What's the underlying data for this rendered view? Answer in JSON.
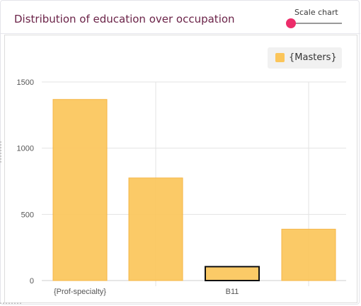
{
  "header": {
    "title": "Distribution of education over occupation",
    "scale_label": "Scale chart"
  },
  "colors": {
    "bar": "#fbc55a",
    "bar_stroke": "#f5b545",
    "highlight_stroke": "#111111",
    "accent": "#ec2d6a",
    "title": "#6b2348"
  },
  "slider": {
    "value": 0
  },
  "chart_data": {
    "type": "bar",
    "categories": [
      "{Prof-specialty}",
      "",
      "B11",
      ""
    ],
    "series": [
      {
        "name": "{Masters}",
        "values": [
          1368,
          775,
          105,
          388
        ]
      }
    ],
    "highlighted_index": 2,
    "yticks": [
      0,
      500,
      1000,
      1500
    ],
    "ylim": [
      0,
      1500
    ],
    "grid": true,
    "legend": "top-right"
  }
}
